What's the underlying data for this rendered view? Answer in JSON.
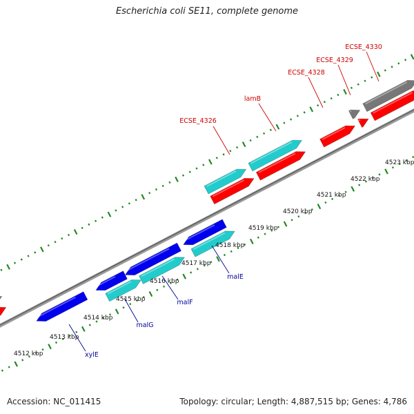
{
  "title": "Escherichia coli SE11, complete genome",
  "footer": {
    "accession": "Accession: NC_011415",
    "summary": "Topology: circular; Length: 4,887,515 bp; Genes: 4,786"
  },
  "colors": {
    "backbone": "#888888",
    "forward_cds": "#ff0000",
    "reverse_cds": "#0000ee",
    "forward_orf": "#22cccc",
    "gray_feature": "#777777",
    "forward_label": "#cc0000",
    "reverse_label": "#000099",
    "tick": "#228822"
  },
  "ruler": {
    "ticks": [
      {
        "label": "4512 kbp"
      },
      {
        "label": "4513 kbp"
      },
      {
        "label": "4514 kbp"
      },
      {
        "label": "4515 kbp"
      },
      {
        "label": "4516 kbp"
      },
      {
        "label": "4517 kbp"
      },
      {
        "label": "4518 kbp"
      },
      {
        "label": "4519 kbp"
      },
      {
        "label": "4520 kbp"
      },
      {
        "label": "4521 kbp"
      },
      {
        "label": "4522 kbp"
      },
      {
        "label": "4523 kbp"
      }
    ]
  },
  "gene_labels": {
    "forward": [
      {
        "name": "ECSE_4326"
      },
      {
        "name": "lamB"
      },
      {
        "name": "ECSE_4328"
      },
      {
        "name": "ECSE_4329"
      },
      {
        "name": "ECSE_4330"
      }
    ],
    "reverse": [
      {
        "name": "xylE"
      },
      {
        "name": "malG"
      },
      {
        "name": "malF"
      },
      {
        "name": "malE"
      }
    ]
  }
}
